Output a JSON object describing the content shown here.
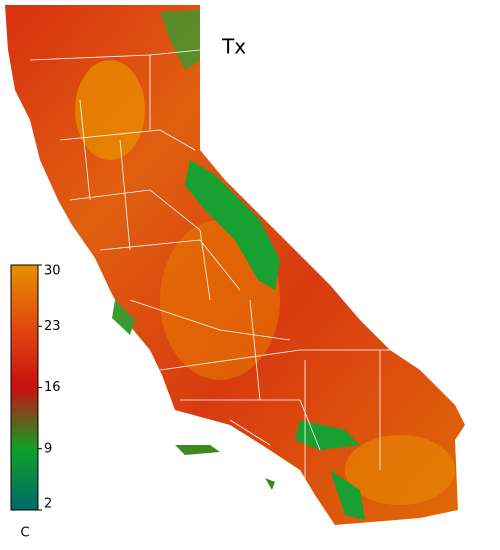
{
  "map": {
    "title": "Tx",
    "colorbar": {
      "lim": [
        2,
        30
      ],
      "ticks": [
        30,
        23,
        16,
        9,
        2
      ],
      "unit": "C",
      "colors": [
        "#006a6a",
        "#10a028",
        "#c81010",
        "#e24a10",
        "#e89000"
      ]
    }
  }
}
